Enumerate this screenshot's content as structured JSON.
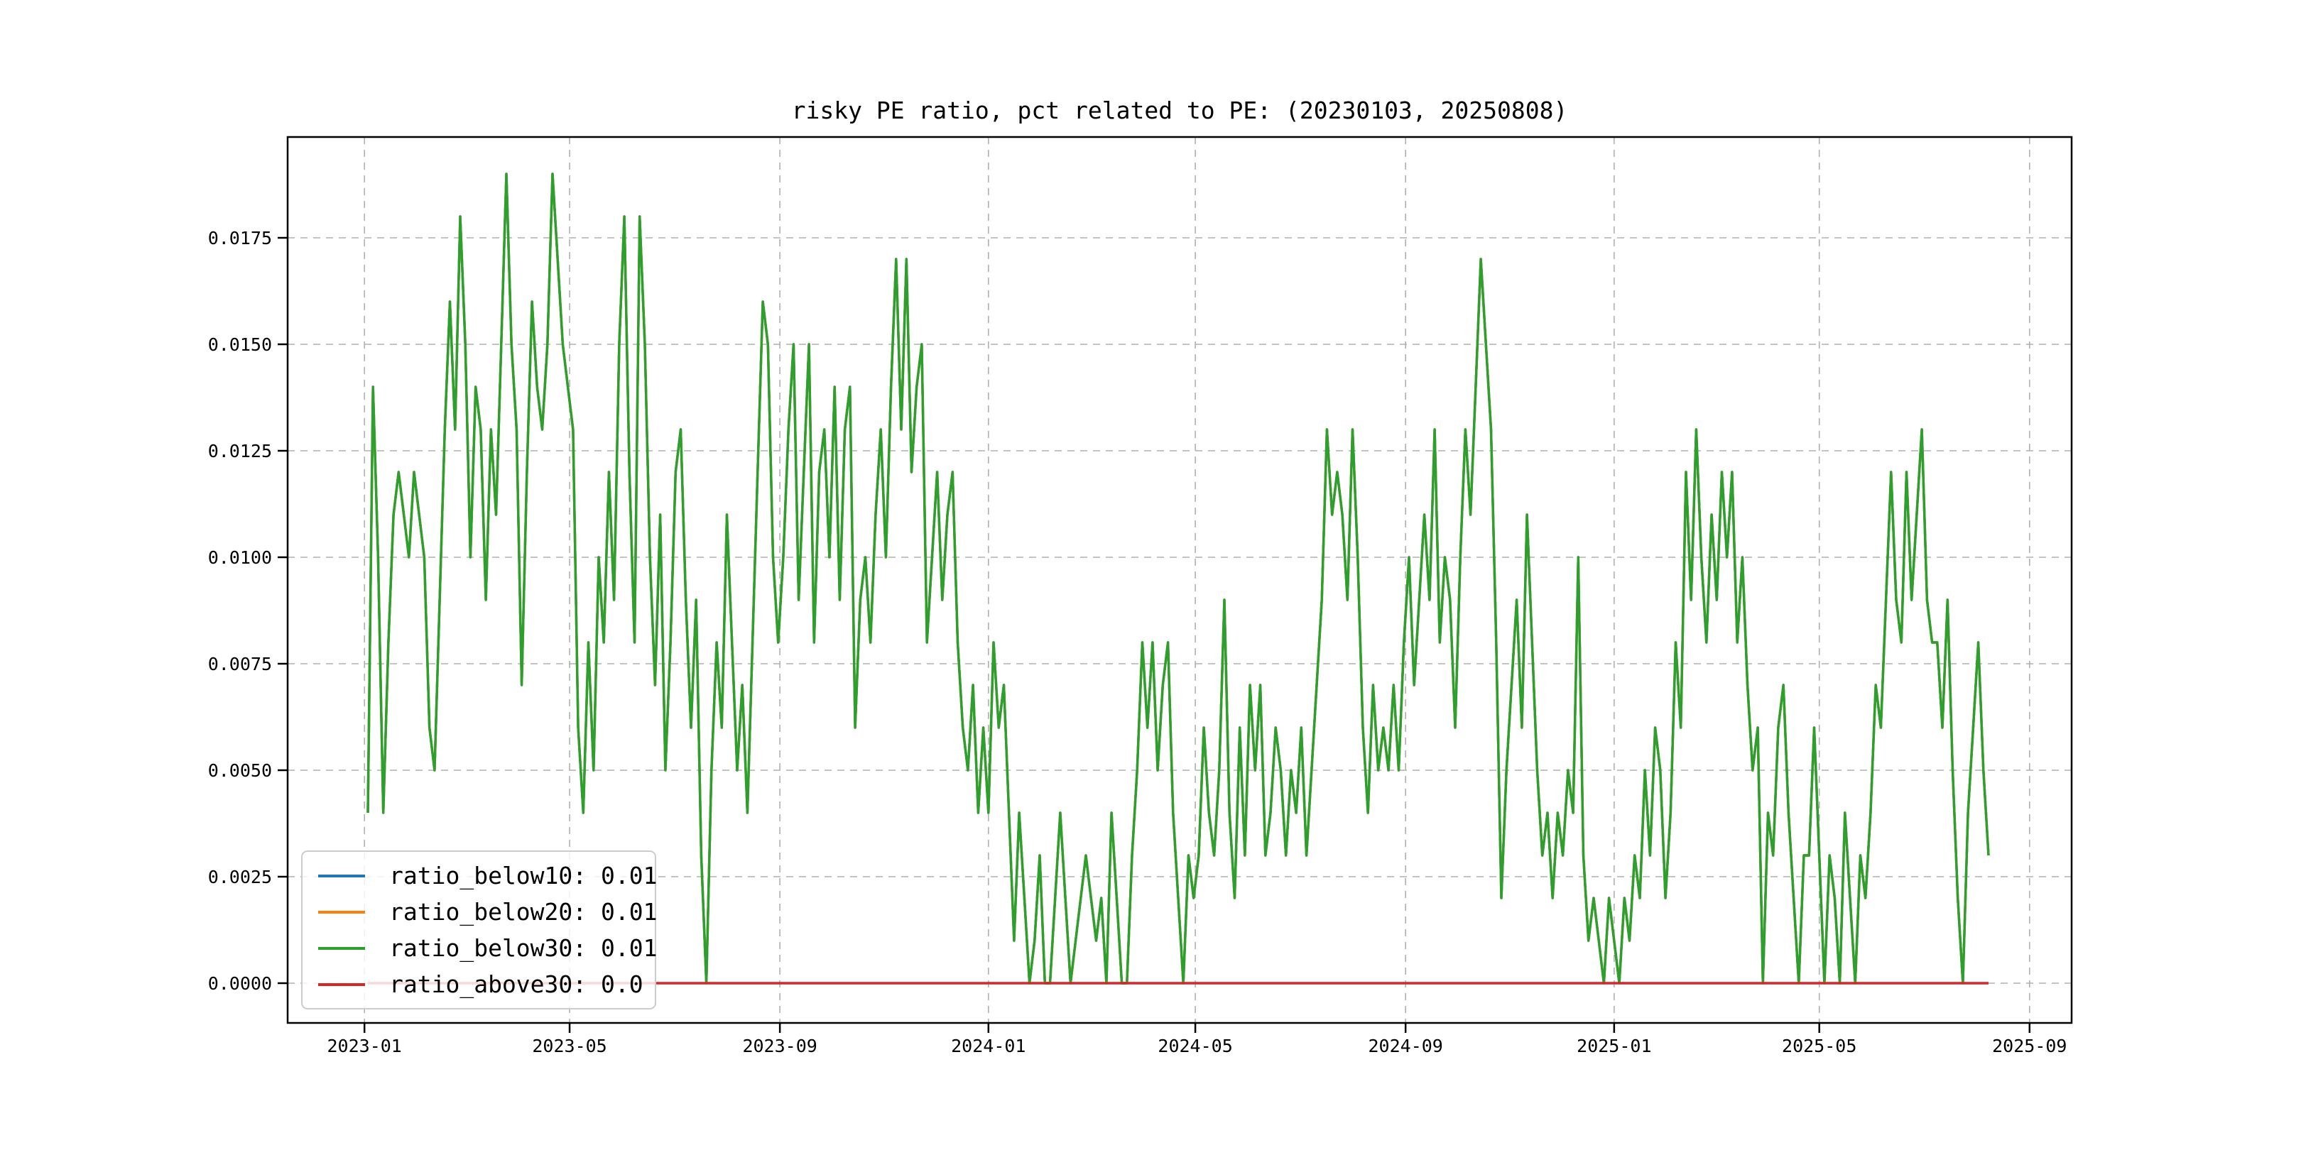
{
  "chart_data": {
    "type": "line",
    "title": "risky PE ratio, pct related to PE: (20230103, 20250808)",
    "xlabel": "",
    "ylabel": "",
    "grid": true,
    "legend_position": "lower-left",
    "background_color": "#ffffff",
    "grid_color": "#b0b0b0",
    "spine_color": "#000000",
    "ylim": [
      -0.00093,
      0.01995
    ],
    "x_axis_kind": "date",
    "x_start_date": "2023-01-03",
    "x_end_date": "2025-08-08",
    "x_step_days": 3,
    "x_ticks": [
      {
        "label": "2023-01",
        "day": -2
      },
      {
        "label": "2023-05",
        "day": 118
      },
      {
        "label": "2023-09",
        "day": 241
      },
      {
        "label": "2024-01",
        "day": 363
      },
      {
        "label": "2024-05",
        "day": 484
      },
      {
        "label": "2024-09",
        "day": 607
      },
      {
        "label": "2025-01",
        "day": 729
      },
      {
        "label": "2025-05",
        "day": 849
      },
      {
        "label": "2025-09",
        "day": 972
      }
    ],
    "y_ticks": [
      {
        "label": "0.0000",
        "value": 0.0
      },
      {
        "label": "0.0025",
        "value": 0.0025
      },
      {
        "label": "0.0050",
        "value": 0.005
      },
      {
        "label": "0.0075",
        "value": 0.0075
      },
      {
        "label": "0.0100",
        "value": 0.01
      },
      {
        "label": "0.0125",
        "value": 0.0125
      },
      {
        "label": "0.0150",
        "value": 0.015
      },
      {
        "label": "0.0175",
        "value": 0.0175
      }
    ],
    "value_unit": 0.001,
    "series": [
      {
        "name": "ratio_below10",
        "legend": "ratio_below10: 0.01",
        "color": "#1f77b4",
        "values_ref": "ratio_below30",
        "note": "line coincides with ratio_below30 and is hidden beneath it"
      },
      {
        "name": "ratio_below20",
        "legend": "ratio_below20: 0.01",
        "color": "#ff7f0e",
        "values_ref": "ratio_below30",
        "note": "line coincides with ratio_below30 and is hidden beneath it"
      },
      {
        "name": "ratio_below30",
        "legend": "ratio_below30: 0.01",
        "color": "#2ca02c",
        "values_x1000": [
          4,
          14,
          10,
          4,
          8,
          11,
          12,
          11,
          10,
          12,
          11,
          10,
          6,
          5,
          9,
          13,
          16,
          13,
          18,
          15,
          10,
          14,
          13,
          9,
          13,
          11,
          15,
          19,
          15,
          13,
          7,
          12,
          16,
          14,
          13,
          15,
          19,
          17,
          15,
          14,
          13,
          6,
          4,
          8,
          5,
          10,
          8,
          12,
          9,
          15,
          18,
          12,
          8,
          18,
          15,
          10,
          7,
          11,
          5,
          8,
          12,
          13,
          9,
          6,
          9,
          3,
          0,
          5,
          8,
          6,
          11,
          8,
          5,
          7,
          4,
          8,
          12,
          16,
          15,
          10,
          8,
          10,
          13,
          15,
          9,
          12,
          15,
          8,
          12,
          13,
          10,
          14,
          9,
          13,
          14,
          6,
          9,
          10,
          8,
          11,
          13,
          10,
          14,
          17,
          13,
          17,
          12,
          14,
          15,
          8,
          10,
          12,
          9,
          11,
          12,
          8,
          6,
          5,
          7,
          4,
          6,
          4,
          8,
          6,
          7,
          4,
          1,
          4,
          2,
          0,
          1,
          3,
          0,
          0,
          2,
          4,
          2,
          0,
          1,
          2,
          3,
          2,
          1,
          2,
          0,
          4,
          2,
          0,
          0,
          3,
          5,
          8,
          6,
          8,
          5,
          7,
          8,
          4,
          2,
          0,
          3,
          2,
          3,
          6,
          4,
          3,
          5,
          9,
          4,
          2,
          6,
          3,
          7,
          5,
          7,
          3,
          4,
          6,
          5,
          3,
          5,
          4,
          6,
          3,
          5,
          7,
          9,
          13,
          11,
          12,
          11,
          9,
          13,
          10,
          6,
          4,
          7,
          5,
          6,
          5,
          7,
          5,
          8,
          10,
          7,
          9,
          11,
          9,
          13,
          8,
          10,
          9,
          6,
          10,
          13,
          11,
          14,
          17,
          15,
          13,
          8,
          2,
          5,
          7,
          9,
          6,
          11,
          8,
          5,
          3,
          4,
          2,
          4,
          3,
          5,
          4,
          10,
          3,
          1,
          2,
          1,
          0,
          2,
          1,
          0,
          2,
          1,
          3,
          2,
          5,
          3,
          6,
          5,
          2,
          4,
          8,
          6,
          12,
          9,
          13,
          10,
          8,
          11,
          9,
          12,
          10,
          12,
          8,
          10,
          7,
          5,
          6,
          0,
          4,
          3,
          6,
          7,
          4,
          2,
          0,
          3,
          3,
          6,
          3,
          0,
          3,
          2,
          0,
          4,
          2,
          0,
          3,
          2,
          4,
          7,
          6,
          9,
          12,
          9,
          8,
          12,
          9,
          11,
          13,
          9,
          8,
          8,
          6,
          9,
          5,
          2,
          0,
          4,
          6,
          8,
          5,
          3
        ]
      },
      {
        "name": "ratio_above30",
        "legend": "ratio_above30: 0.0",
        "color": "#d62728",
        "constant_value": 0
      }
    ]
  }
}
